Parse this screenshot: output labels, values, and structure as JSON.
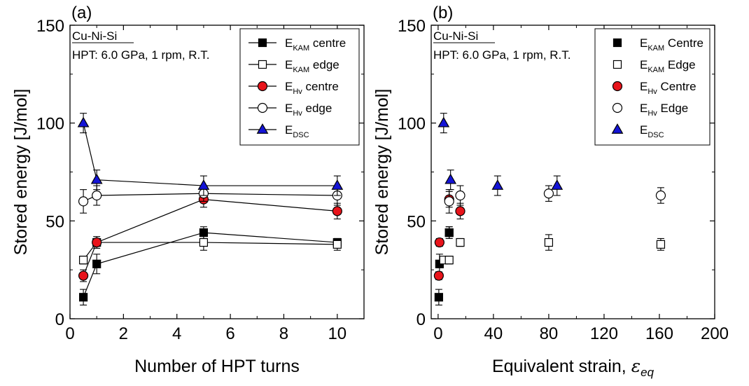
{
  "chart_data": [
    {
      "type": "scatter",
      "panel_label": "(a)",
      "material": "Cu-Ni-Si",
      "condition": "HPT: 6.0 GPa, 1 rpm, R.T.",
      "xlabel": "Number of HPT turns",
      "ylabel": "Stored energy [J/mol]",
      "xlim": [
        0,
        11
      ],
      "ylim": [
        0,
        150
      ],
      "xticks": [
        0,
        2,
        4,
        6,
        8,
        10
      ],
      "yticks": [
        0,
        50,
        100,
        150
      ],
      "lines": true,
      "legend_position": "top-right",
      "series": [
        {
          "base": "E",
          "sub": "KAM",
          "suffix": " centre",
          "marker": "square",
          "fill": "#000000",
          "stroke": "#000000",
          "x": [
            0.5,
            1,
            5,
            10
          ],
          "y": [
            11,
            28,
            44,
            39
          ],
          "err": [
            4,
            5,
            3,
            2
          ]
        },
        {
          "base": "E",
          "sub": "KAM",
          "suffix": " edge",
          "marker": "square",
          "fill": "#ffffff",
          "stroke": "#000000",
          "x": [
            0.5,
            1,
            5,
            10
          ],
          "y": [
            30,
            39,
            39,
            38
          ],
          "err": [
            2,
            2,
            4,
            3
          ]
        },
        {
          "base": "E",
          "sub": "Hv",
          "suffix": " centre",
          "marker": "circle",
          "fill": "#e8141b",
          "stroke": "#000000",
          "x": [
            0.5,
            1,
            5,
            10
          ],
          "y": [
            22,
            39,
            61,
            55
          ],
          "err": [
            3,
            3,
            4,
            4
          ]
        },
        {
          "base": "E",
          "sub": "Hv",
          "suffix": " edge",
          "marker": "circle",
          "fill": "#ffffff",
          "stroke": "#000000",
          "x": [
            0.5,
            1,
            5,
            10
          ],
          "y": [
            60,
            63,
            64,
            63
          ],
          "err": [
            6,
            5,
            4,
            5
          ]
        },
        {
          "base": "E",
          "sub": "DSC",
          "suffix": "",
          "marker": "triangle",
          "fill": "#1414d6",
          "stroke": "#000000",
          "x": [
            0.5,
            1,
            5,
            10
          ],
          "y": [
            100,
            71,
            68,
            68
          ],
          "err": [
            5,
            5,
            5,
            5
          ]
        }
      ]
    },
    {
      "type": "scatter",
      "panel_label": "(b)",
      "material": "Cu-Ni-Si",
      "condition": "HPT: 6.0 GPa, 1 rpm, R.T.",
      "xlabel": "Equivalent strain, ",
      "xlabel_symbol": "ε",
      "xlabel_sub": "eq",
      "ylabel": "Stored energy [J/mol]",
      "xlim": [
        -5,
        200
      ],
      "ylim": [
        0,
        150
      ],
      "xticks": [
        0,
        40,
        80,
        120,
        160,
        200
      ],
      "yticks": [
        0,
        50,
        100,
        150
      ],
      "lines": false,
      "legend_position": "top-right",
      "series": [
        {
          "base": "E",
          "sub": "KAM",
          "suffix": " Centre",
          "marker": "square",
          "fill": "#000000",
          "stroke": "#000000",
          "x": [
            0.5,
            1,
            8,
            8
          ],
          "y": [
            11,
            28,
            44,
            44
          ],
          "err": [
            4,
            5,
            3,
            3
          ]
        },
        {
          "base": "E",
          "sub": "KAM",
          "suffix": " Edge",
          "marker": "square",
          "fill": "#ffffff",
          "stroke": "#000000",
          "x": [
            4,
            8,
            16,
            80,
            161
          ],
          "y": [
            30,
            30,
            39,
            39,
            38
          ],
          "err": [
            0,
            2,
            2,
            4,
            3
          ]
        },
        {
          "base": "E",
          "sub": "Hv",
          "suffix": " Centre",
          "marker": "circle",
          "fill": "#e8141b",
          "stroke": "#000000",
          "x": [
            0.5,
            1,
            8,
            16
          ],
          "y": [
            22,
            39,
            61,
            55
          ],
          "err": [
            2,
            2,
            4,
            4
          ]
        },
        {
          "base": "E",
          "sub": "Hv",
          "suffix": " Edge",
          "marker": "circle",
          "fill": "#ffffff",
          "stroke": "#000000",
          "x": [
            8,
            16,
            80,
            161
          ],
          "y": [
            60,
            63,
            64,
            63
          ],
          "err": [
            6,
            5,
            4,
            4
          ]
        },
        {
          "base": "E",
          "sub": "DSC",
          "suffix": "",
          "marker": "triangle",
          "fill": "#1414d6",
          "stroke": "#000000",
          "x": [
            4,
            9,
            43,
            86
          ],
          "y": [
            100,
            71,
            68,
            68
          ],
          "err": [
            5,
            5,
            5,
            5
          ]
        }
      ]
    }
  ]
}
